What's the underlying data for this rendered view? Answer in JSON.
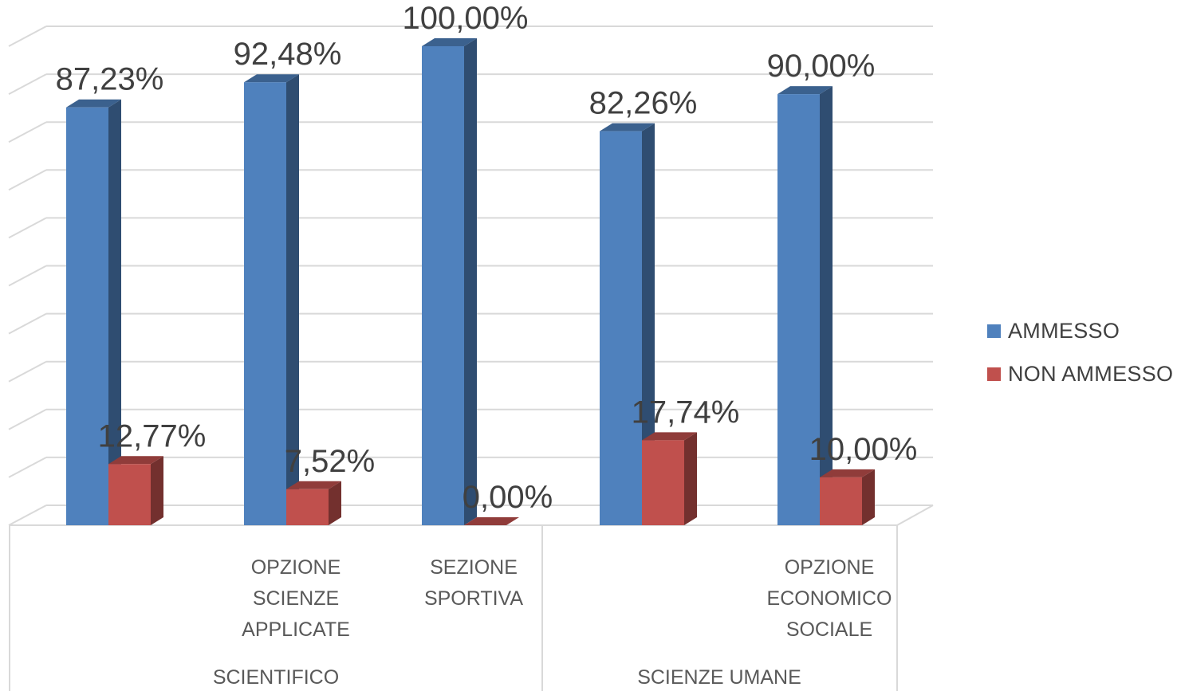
{
  "chart_data": {
    "type": "bar",
    "categories": [
      {
        "label": "",
        "group": "SCIENTIFICO"
      },
      {
        "label": "OPZIONE SCIENZE APPLICATE",
        "group": "SCIENTIFICO"
      },
      {
        "label": "SEZIONE SPORTIVA",
        "group": "SCIENTIFICO"
      },
      {
        "label": "",
        "group": "SCIENZE UMANE"
      },
      {
        "label": "OPZIONE ECONOMICO SOCIALE",
        "group": "SCIENZE UMANE"
      }
    ],
    "category_lines": [
      [],
      [
        "OPZIONE",
        "SCIENZE",
        "APPLICATE"
      ],
      [
        "SEZIONE",
        "SPORTIVA"
      ],
      [],
      [
        "OPZIONE",
        "ECONOMICO",
        "SOCIALE"
      ]
    ],
    "groups": [
      "SCIENTIFICO",
      "SCIENZE UMANE"
    ],
    "series": [
      {
        "name": "AMMESSO",
        "values": [
          87.23,
          92.48,
          100.0,
          82.26,
          90.0
        ],
        "labels": [
          "87,23%",
          "92,48%",
          "100,00%",
          "82,26%",
          "90,00%"
        ]
      },
      {
        "name": "NON AMMESSO",
        "values": [
          12.77,
          7.52,
          0.0,
          17.74,
          10.0
        ],
        "labels": [
          "12,77%",
          "7,52%",
          "0,00%",
          "17,74%",
          "10,00%"
        ]
      }
    ],
    "ylim": [
      0,
      100
    ],
    "grid": true,
    "legend": "right",
    "colors": {
      "AMMESSO": "#4F81BD",
      "NON AMMESSO": "#C0504D"
    }
  }
}
